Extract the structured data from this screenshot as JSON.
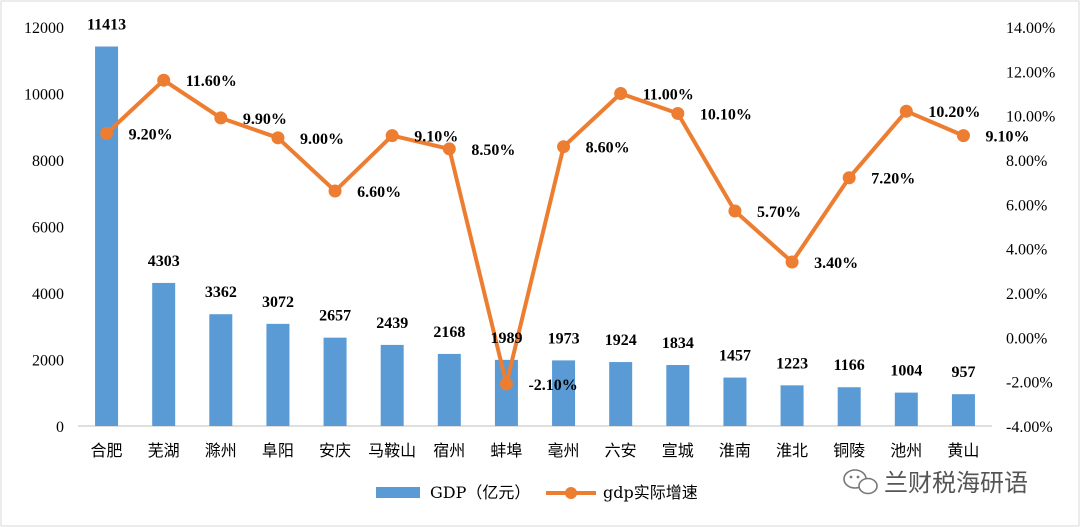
{
  "chart_data": {
    "type": "bar+line",
    "categories": [
      "合肥",
      "芜湖",
      "滁州",
      "阜阳",
      "安庆",
      "马鞍山",
      "宿州",
      "蚌埠",
      "亳州",
      "六安",
      "宣城",
      "淮南",
      "淮北",
      "铜陵",
      "池州",
      "黄山"
    ],
    "series": [
      {
        "name": "GDP（亿元）",
        "type": "bar",
        "axis": "left",
        "color": "#5b9bd5",
        "values": [
          11413,
          4303,
          3362,
          3072,
          2657,
          2439,
          2168,
          1989,
          1973,
          1924,
          1834,
          1457,
          1223,
          1166,
          1004,
          957
        ],
        "labels": [
          "11413",
          "4303",
          "3362",
          "3072",
          "2657",
          "2439",
          "2168",
          "1989",
          "1973",
          "1924",
          "1834",
          "1457",
          "1223",
          "1166",
          "1004",
          "957"
        ]
      },
      {
        "name": "gdp实际增速",
        "type": "line",
        "axis": "right",
        "color": "#ed7d31",
        "values": [
          9.2,
          11.6,
          9.9,
          9.0,
          6.6,
          9.1,
          8.5,
          -2.1,
          8.6,
          11.0,
          10.1,
          5.7,
          3.4,
          7.2,
          10.2,
          9.1
        ],
        "labels": [
          "9.20%",
          "11.60%",
          "9.90%",
          "9.00%",
          "6.60%",
          "9.10%",
          "8.50%",
          "-2.10%",
          "8.60%",
          "11.00%",
          "10.10%",
          "5.70%",
          "3.40%",
          "7.20%",
          "10.20%",
          "9.10%"
        ]
      }
    ],
    "y_left": {
      "min": 0,
      "max": 12000,
      "ticks": [
        "0",
        "2000",
        "4000",
        "6000",
        "8000",
        "10000",
        "12000"
      ]
    },
    "y_right": {
      "min": -4,
      "max": 14,
      "ticks": [
        "-4.00%",
        "-2.00%",
        "0.00%",
        "2.00%",
        "4.00%",
        "6.00%",
        "8.00%",
        "10.00%",
        "12.00%",
        "14.00%"
      ]
    },
    "grid": false,
    "legend_position": "bottom"
  },
  "watermark": {
    "text": "兰财税海研语",
    "icon": "wechat-icon"
  }
}
